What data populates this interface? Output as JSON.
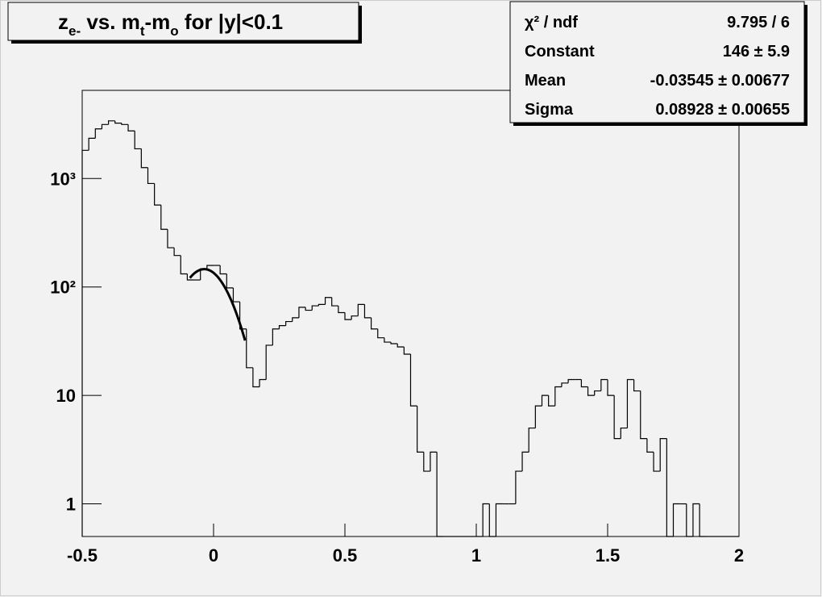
{
  "chart_data": {
    "type": "histogram",
    "title": [
      {
        "text": "z"
      },
      {
        "text": "e-",
        "sub": true
      },
      {
        "text": " vs. m"
      },
      {
        "text": "t",
        "sub": true
      },
      {
        "text": "-m"
      },
      {
        "text": "o",
        "sub": true
      },
      {
        "text": " for |y|<0.1"
      }
    ],
    "bins": [
      -0.5,
      -0.475,
      -0.45,
      -0.425,
      -0.4,
      -0.375,
      -0.35,
      -0.325,
      -0.3,
      -0.275,
      -0.25,
      -0.225,
      -0.2,
      -0.175,
      -0.15,
      -0.125,
      -0.1,
      -0.075,
      -0.05,
      -0.025,
      0,
      0.025,
      0.05,
      0.075,
      0.1,
      0.125,
      0.15,
      0.175,
      0.2,
      0.225,
      0.25,
      0.275,
      0.3,
      0.325,
      0.35,
      0.375,
      0.4,
      0.425,
      0.45,
      0.475,
      0.5,
      0.525,
      0.55,
      0.575,
      0.6,
      0.625,
      0.65,
      0.675,
      0.7,
      0.725,
      0.75,
      0.775,
      0.8,
      0.825,
      0.85,
      0.875,
      0.9,
      0.925,
      0.95,
      0.975,
      1,
      1.025,
      1.05,
      1.075,
      1.1,
      1.125,
      1.15,
      1.175,
      1.2,
      1.225,
      1.25,
      1.275,
      1.3,
      1.325,
      1.35,
      1.375,
      1.4,
      1.425,
      1.45,
      1.475,
      1.5,
      1.525,
      1.55,
      1.575,
      1.6,
      1.625,
      1.65,
      1.675,
      1.7,
      1.725,
      1.75,
      1.775,
      1.8,
      1.825,
      1.85,
      1.875,
      1.9,
      1.925,
      1.95,
      1.975,
      2
    ],
    "counts": [
      1820,
      2350,
      2870,
      3150,
      3400,
      3240,
      3150,
      2750,
      1880,
      1260,
      900,
      570,
      340,
      230,
      195,
      132,
      116,
      116,
      147,
      158,
      158,
      132,
      98,
      73,
      41,
      18,
      12,
      14,
      29,
      41,
      44,
      48,
      52,
      65,
      61,
      67,
      69,
      80,
      67,
      58,
      50,
      54,
      69,
      52,
      41,
      34,
      31,
      30,
      28,
      24,
      8,
      3,
      2,
      3,
      0,
      0,
      0,
      0,
      0,
      0,
      0,
      1,
      0,
      1,
      1,
      1,
      2,
      3,
      5,
      8,
      10,
      8,
      12,
      13,
      14,
      14,
      12,
      10,
      11,
      14,
      10,
      4,
      5,
      14,
      11,
      4,
      3,
      2,
      4,
      0,
      1,
      1,
      0,
      1,
      0,
      0,
      0,
      0,
      0,
      0
    ],
    "color": "#000000",
    "xlim": [
      -0.5,
      2
    ],
    "xticks": [
      -0.5,
      0,
      0.5,
      1,
      1.5,
      2
    ],
    "ylim": [
      0.5,
      6500
    ],
    "log_y": true,
    "yticks": [
      {
        "value": 1,
        "label": "1"
      },
      {
        "value": 10,
        "label": "10"
      },
      {
        "value": 100,
        "label": "10²"
      },
      {
        "value": 1000,
        "label": "10³"
      }
    ],
    "fit": {
      "range": [
        -0.09,
        0.12
      ],
      "constant": 146,
      "mean": -0.03545,
      "sigma": 0.08928
    },
    "stats": [
      {
        "name": "χ² / ndf",
        "label": "9.795 / 6"
      },
      {
        "name": "Constant",
        "label": "146 ± 5.9"
      },
      {
        "name": "Mean",
        "label": "-0.03545 ± 0.00677"
      },
      {
        "name": "Sigma",
        "label": "0.08928 ± 0.00655"
      }
    ]
  }
}
